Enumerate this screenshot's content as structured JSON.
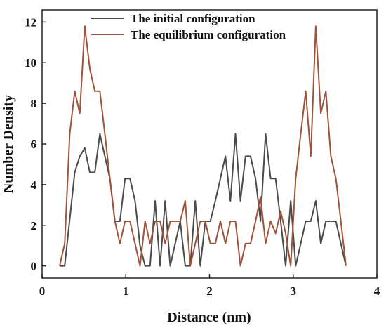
{
  "chart_data": {
    "type": "line",
    "xlabel": "Distance (nm)",
    "ylabel": "Number Density",
    "xlim": [
      0,
      4
    ],
    "ylim": [
      -0.6,
      12.6
    ],
    "xticks": [
      0,
      1,
      2,
      3,
      4
    ],
    "yticks": [
      0,
      2,
      4,
      6,
      8,
      10,
      12
    ],
    "grid": false,
    "legend_position": "top-center",
    "series": [
      {
        "name": "The initial configuration",
        "color": "#4a4a4a",
        "x": [
          0.21,
          0.27,
          0.33,
          0.39,
          0.45,
          0.51,
          0.57,
          0.63,
          0.69,
          0.75,
          0.81,
          0.87,
          0.93,
          0.99,
          1.05,
          1.11,
          1.17,
          1.23,
          1.29,
          1.35,
          1.41,
          1.47,
          1.53,
          1.59,
          1.65,
          1.71,
          1.77,
          1.83,
          1.89,
          1.95,
          2.01,
          2.07,
          2.13,
          2.19,
          2.25,
          2.31,
          2.37,
          2.43,
          2.49,
          2.55,
          2.61,
          2.67,
          2.73,
          2.79,
          2.85,
          2.91,
          2.97,
          3.03,
          3.09,
          3.15,
          3.21,
          3.27,
          3.33,
          3.39,
          3.45,
          3.51,
          3.57,
          3.63
        ],
        "values": [
          0,
          0,
          2.3,
          4.6,
          5.4,
          5.8,
          4.6,
          4.6,
          6.5,
          5.4,
          4.3,
          2.2,
          2.2,
          4.3,
          4.3,
          3.2,
          1.0,
          0,
          0,
          3.2,
          0,
          3.2,
          0,
          1.1,
          2.2,
          0,
          0,
          3.2,
          0,
          2.2,
          2.2,
          3.2,
          4.3,
          5.4,
          3.2,
          6.5,
          3.2,
          5.4,
          5.4,
          4.3,
          2.2,
          6.5,
          4.3,
          4.3,
          2.2,
          0,
          3.2,
          0,
          1.1,
          2.2,
          2.2,
          3.2,
          1.1,
          2.2,
          2.2,
          2.2,
          1.1,
          0
        ]
      },
      {
        "name": "The equilibrium configuration",
        "color": "#a0523a",
        "x": [
          0.21,
          0.27,
          0.33,
          0.39,
          0.45,
          0.51,
          0.57,
          0.63,
          0.69,
          0.75,
          0.81,
          0.87,
          0.93,
          0.99,
          1.05,
          1.11,
          1.17,
          1.23,
          1.29,
          1.35,
          1.41,
          1.47,
          1.53,
          1.59,
          1.65,
          1.71,
          1.77,
          1.83,
          1.89,
          1.95,
          2.01,
          2.07,
          2.13,
          2.19,
          2.25,
          2.31,
          2.37,
          2.43,
          2.49,
          2.55,
          2.61,
          2.67,
          2.73,
          2.79,
          2.85,
          2.91,
          2.97,
          3.03,
          3.09,
          3.15,
          3.21,
          3.27,
          3.33,
          3.39,
          3.45,
          3.51,
          3.57,
          3.63
        ],
        "values": [
          0,
          1.1,
          6.5,
          8.6,
          7.5,
          11.8,
          9.7,
          8.6,
          8.6,
          6.5,
          4.3,
          2.2,
          1.1,
          2.2,
          2.2,
          1.1,
          0,
          2.2,
          1.1,
          2.2,
          2.2,
          1.1,
          2.2,
          2.2,
          2.2,
          3.2,
          0,
          1.1,
          2.2,
          2.2,
          1.1,
          1.1,
          2.2,
          1.1,
          2.2,
          2.2,
          0,
          1.1,
          1.1,
          2.2,
          3.4,
          1.1,
          2.2,
          1.6,
          2.7,
          1.6,
          0,
          4.3,
          6.5,
          8.6,
          5.4,
          11.8,
          7.5,
          8.6,
          5.4,
          4.3,
          2.2,
          0
        ]
      }
    ]
  }
}
